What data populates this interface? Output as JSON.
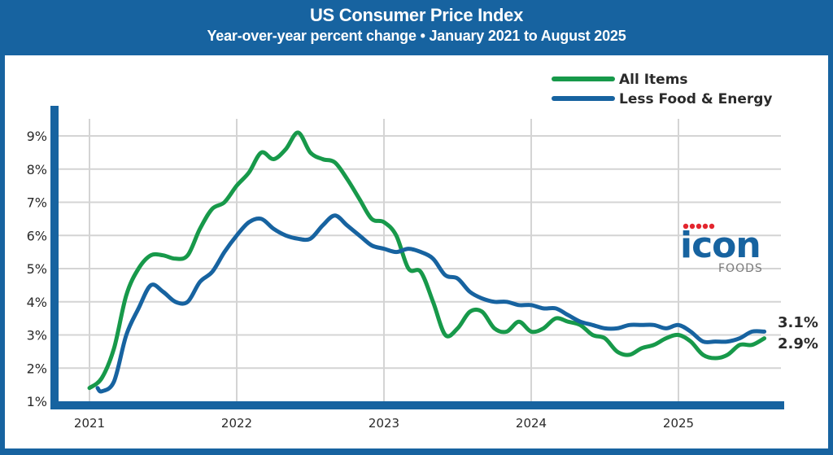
{
  "header": {
    "title": "US Consumer Price Index",
    "subtitle": "Year-over-year percent change • January 2021 to August 2025"
  },
  "logo": {
    "main": "icon",
    "sub": "FOODS",
    "dot_color": "#e3262e",
    "main_color": "#1763a0"
  },
  "colors": {
    "frame": "#1763a0",
    "grid": "#d4d4d4",
    "all_items": "#17994a",
    "core": "#1763a0"
  },
  "chart_data": {
    "type": "line",
    "title": "US Consumer Price Index",
    "subtitle": "Year-over-year percent change • January 2021 to August 2025",
    "xlabel": "",
    "ylabel": "",
    "x_start": "2021-01",
    "x_end": "2025-08",
    "xticks": [
      "2021",
      "2022",
      "2023",
      "2024",
      "2025"
    ],
    "yticks": [
      "1%",
      "2%",
      "3%",
      "4%",
      "5%",
      "6%",
      "7%",
      "8%",
      "9%"
    ],
    "ytick_values": [
      1,
      2,
      3,
      4,
      5,
      6,
      7,
      8,
      9
    ],
    "ylim": [
      1,
      9.8
    ],
    "grid": true,
    "legend_position": "top-right",
    "legend": [
      "All Items",
      "Less Food & Energy"
    ],
    "end_labels": {
      "core": "3.1%",
      "all_items": "2.9%"
    },
    "months": [
      "2021-01",
      "2021-02",
      "2021-03",
      "2021-04",
      "2021-05",
      "2021-06",
      "2021-07",
      "2021-08",
      "2021-09",
      "2021-10",
      "2021-11",
      "2021-12",
      "2022-01",
      "2022-02",
      "2022-03",
      "2022-04",
      "2022-05",
      "2022-06",
      "2022-07",
      "2022-08",
      "2022-09",
      "2022-10",
      "2022-11",
      "2022-12",
      "2023-01",
      "2023-02",
      "2023-03",
      "2023-04",
      "2023-05",
      "2023-06",
      "2023-07",
      "2023-08",
      "2023-09",
      "2023-10",
      "2023-11",
      "2023-12",
      "2024-01",
      "2024-02",
      "2024-03",
      "2024-04",
      "2024-05",
      "2024-06",
      "2024-07",
      "2024-08",
      "2024-09",
      "2024-10",
      "2024-11",
      "2024-12",
      "2025-01",
      "2025-02",
      "2025-03",
      "2025-04",
      "2025-05",
      "2025-06",
      "2025-07",
      "2025-08"
    ],
    "series": [
      {
        "name": "All Items",
        "key": "all_items",
        "values": [
          1.4,
          1.7,
          2.6,
          4.2,
          5.0,
          5.4,
          5.4,
          5.3,
          5.4,
          6.2,
          6.8,
          7.0,
          7.5,
          7.9,
          8.5,
          8.3,
          8.6,
          9.1,
          8.5,
          8.3,
          8.2,
          7.7,
          7.1,
          6.5,
          6.4,
          6.0,
          5.0,
          4.9,
          4.0,
          3.0,
          3.2,
          3.7,
          3.7,
          3.2,
          3.1,
          3.4,
          3.1,
          3.2,
          3.5,
          3.4,
          3.3,
          3.0,
          2.9,
          2.5,
          2.4,
          2.6,
          2.7,
          2.9,
          3.0,
          2.8,
          2.4,
          2.3,
          2.4,
          2.7,
          2.7,
          2.9
        ]
      },
      {
        "name": "Less Food & Energy",
        "key": "core",
        "values": [
          1.4,
          1.3,
          1.6,
          3.0,
          3.8,
          4.5,
          4.3,
          4.0,
          4.0,
          4.6,
          4.9,
          5.5,
          6.0,
          6.4,
          6.5,
          6.2,
          6.0,
          5.9,
          5.9,
          6.3,
          6.6,
          6.3,
          6.0,
          5.7,
          5.6,
          5.5,
          5.6,
          5.5,
          5.3,
          4.8,
          4.7,
          4.3,
          4.1,
          4.0,
          4.0,
          3.9,
          3.9,
          3.8,
          3.8,
          3.6,
          3.4,
          3.3,
          3.2,
          3.2,
          3.3,
          3.3,
          3.3,
          3.2,
          3.3,
          3.1,
          2.8,
          2.8,
          2.8,
          2.9,
          3.1,
          3.1
        ]
      }
    ]
  }
}
